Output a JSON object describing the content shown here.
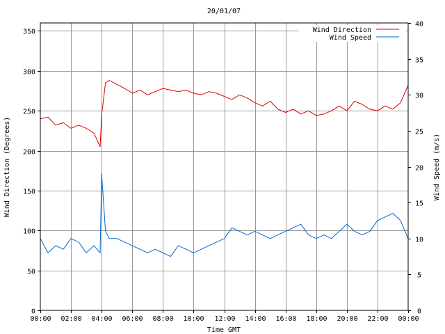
{
  "chart_data": {
    "type": "line",
    "title": "20/01/07",
    "xlabel": "Time GMT",
    "ylabel": "Wind Direction (Degrees)",
    "y2label": "Wind Speed (m/s)",
    "x_tick_labels": [
      "00:00",
      "02:00",
      "04:00",
      "06:00",
      "08:00",
      "10:00",
      "12:00",
      "14:00",
      "16:00",
      "18:00",
      "20:00",
      "22:00",
      "00:00"
    ],
    "x_range_hours": [
      0,
      24
    ],
    "y_ticks": [
      0,
      50,
      100,
      150,
      200,
      250,
      300,
      350
    ],
    "ylim": [
      0,
      360
    ],
    "y2_ticks": [
      0,
      5,
      10,
      15,
      20,
      25,
      30,
      35,
      40
    ],
    "y2lim": [
      0,
      40
    ],
    "grid": true,
    "legend_position": "top-right",
    "series": [
      {
        "name": "Wind Direction",
        "axis": "left",
        "color": "#dd0000",
        "x": [
          0,
          0.5,
          1,
          1.5,
          2,
          2.5,
          3,
          3.5,
          3.9,
          4,
          4.25,
          4.5,
          5,
          5.5,
          6,
          6.5,
          7,
          7.5,
          8,
          8.5,
          9,
          9.5,
          10,
          10.5,
          11,
          11.5,
          12,
          12.5,
          13,
          13.5,
          14,
          14.5,
          15,
          15.5,
          16,
          16.5,
          17,
          17.5,
          18,
          18.5,
          19,
          19.5,
          20,
          20.5,
          21,
          21.5,
          22,
          22.5,
          23,
          23.5,
          24
        ],
        "values": [
          240,
          242,
          232,
          235,
          228,
          232,
          228,
          222,
          205,
          245,
          285,
          288,
          283,
          278,
          272,
          276,
          270,
          274,
          278,
          276,
          274,
          276,
          272,
          270,
          274,
          272,
          268,
          264,
          270,
          266,
          260,
          256,
          262,
          252,
          248,
          252,
          246,
          250,
          244,
          246,
          250,
          256,
          250,
          262,
          258,
          252,
          250,
          256,
          252,
          260,
          282
        ]
      },
      {
        "name": "Wind Speed",
        "axis": "right",
        "color": "#0066cc",
        "x": [
          0,
          0.5,
          1,
          1.5,
          2,
          2.5,
          3,
          3.5,
          3.9,
          4,
          4.25,
          4.5,
          5,
          5.5,
          6,
          6.5,
          7,
          7.5,
          8,
          8.5,
          9,
          9.5,
          10,
          10.5,
          11,
          11.5,
          12,
          12.5,
          13,
          13.5,
          14,
          14.5,
          15,
          15.5,
          16,
          16.5,
          17,
          17.5,
          18,
          18.5,
          19,
          19.5,
          20,
          20.5,
          21,
          21.5,
          22,
          22.5,
          23,
          23.5,
          24
        ],
        "values": [
          10,
          8,
          9,
          8.5,
          10,
          9.5,
          8,
          9,
          8,
          19,
          11,
          10,
          10,
          9.5,
          9,
          8.5,
          8,
          8.5,
          8,
          7.5,
          9,
          8.5,
          8,
          8.5,
          9,
          9.5,
          10,
          11.5,
          11,
          10.5,
          11,
          10.5,
          10,
          10.5,
          11,
          11.5,
          12,
          10.5,
          10,
          10.5,
          10,
          11,
          12,
          11,
          10.5,
          11,
          12.5,
          13,
          13.5,
          12.5,
          10
        ]
      }
    ]
  }
}
